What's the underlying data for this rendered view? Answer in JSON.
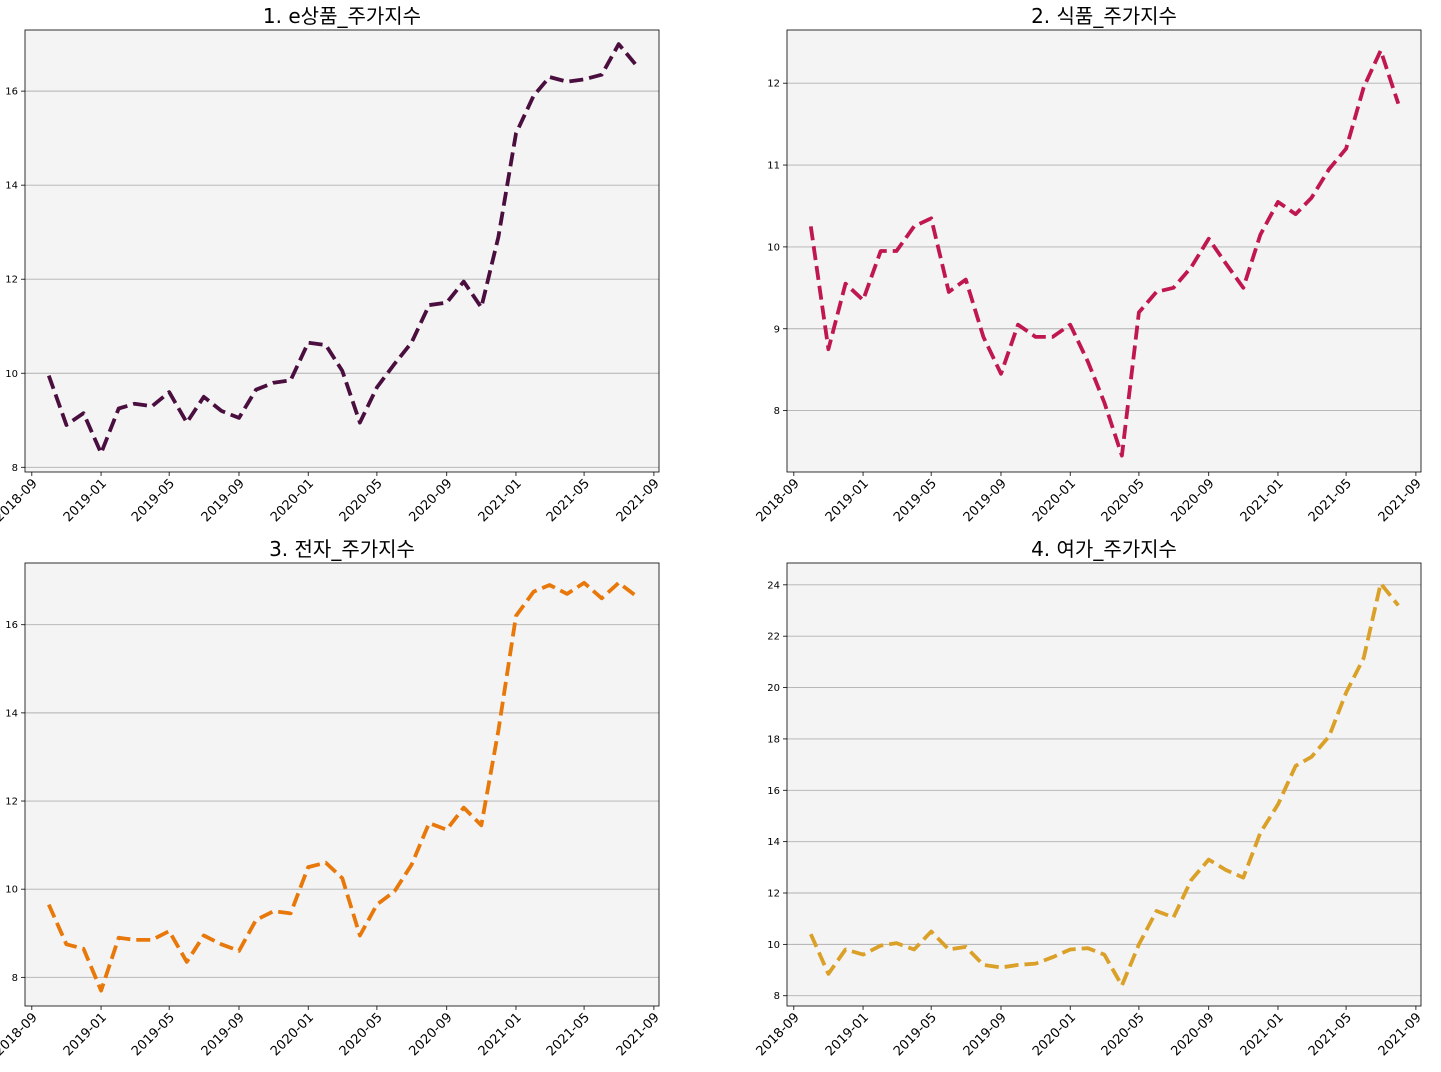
{
  "chart_data": [
    {
      "type": "line",
      "title": "1. e상품_주가지수",
      "color": "#4a0f3f",
      "line_style": "dashed",
      "grid": "y",
      "ylim": [
        7.9,
        17.3
      ],
      "yticks": [
        8,
        10,
        12,
        14,
        16
      ],
      "xlim": [
        "2018-08-20",
        "2021-09-10"
      ],
      "xticks": [
        "2018-09",
        "2019-01",
        "2019-05",
        "2019-09",
        "2020-01",
        "2020-05",
        "2020-09",
        "2021-01",
        "2021-05",
        "2021-09"
      ],
      "x": [
        "2018-10",
        "2018-11",
        "2018-12",
        "2019-01",
        "2019-02",
        "2019-03",
        "2019-04",
        "2019-05",
        "2019-06",
        "2019-07",
        "2019-08",
        "2019-09",
        "2019-10",
        "2019-11",
        "2019-12",
        "2020-01",
        "2020-02",
        "2020-03",
        "2020-04",
        "2020-05",
        "2020-06",
        "2020-07",
        "2020-08",
        "2020-09",
        "2020-10",
        "2020-11",
        "2020-12",
        "2021-01",
        "2021-02",
        "2021-03",
        "2021-04",
        "2021-05",
        "2021-06",
        "2021-07",
        "2021-08"
      ],
      "values": [
        9.95,
        8.9,
        9.15,
        8.3,
        9.25,
        9.35,
        9.3,
        9.6,
        8.95,
        9.5,
        9.2,
        9.05,
        9.65,
        9.8,
        9.85,
        10.65,
        10.6,
        10.05,
        8.95,
        9.7,
        10.2,
        10.65,
        11.45,
        11.5,
        11.95,
        11.4,
        12.9,
        15.1,
        15.9,
        16.3,
        16.2,
        16.25,
        16.35,
        17.0,
        16.55
      ]
    },
    {
      "type": "line",
      "title": "2. 식품_주가지수",
      "color": "#c0174f",
      "line_style": "dashed",
      "grid": "y",
      "ylim": [
        7.25,
        12.65
      ],
      "yticks": [
        8,
        9,
        10,
        11,
        12
      ],
      "xlim": [
        "2018-08-20",
        "2021-09-10"
      ],
      "xticks": [
        "2018-09",
        "2019-01",
        "2019-05",
        "2019-09",
        "2020-01",
        "2020-05",
        "2020-09",
        "2021-01",
        "2021-05",
        "2021-09"
      ],
      "x": [
        "2018-10",
        "2018-11",
        "2018-12",
        "2019-01",
        "2019-02",
        "2019-03",
        "2019-04",
        "2019-05",
        "2019-06",
        "2019-07",
        "2019-08",
        "2019-09",
        "2019-10",
        "2019-11",
        "2019-12",
        "2020-01",
        "2020-02",
        "2020-03",
        "2020-04",
        "2020-05",
        "2020-06",
        "2020-07",
        "2020-08",
        "2020-09",
        "2020-10",
        "2020-11",
        "2020-12",
        "2021-01",
        "2021-02",
        "2021-03",
        "2021-04",
        "2021-05",
        "2021-06",
        "2021-07",
        "2021-08"
      ],
      "values": [
        10.25,
        8.75,
        9.55,
        9.35,
        9.95,
        9.95,
        10.25,
        10.35,
        9.45,
        9.6,
        8.9,
        8.45,
        9.05,
        8.9,
        8.9,
        9.05,
        8.6,
        8.1,
        7.45,
        9.2,
        9.45,
        9.5,
        9.75,
        10.1,
        9.8,
        9.5,
        10.15,
        10.55,
        10.4,
        10.6,
        10.95,
        11.2,
        11.95,
        12.4,
        11.75
      ]
    },
    {
      "type": "line",
      "title": "3. 전자_주가지수",
      "color": "#e8780a",
      "line_style": "dashed",
      "grid": "y",
      "ylim": [
        7.35,
        17.4
      ],
      "yticks": [
        8,
        10,
        12,
        14,
        16
      ],
      "xlim": [
        "2018-08-20",
        "2021-09-10"
      ],
      "xticks": [
        "2018-09",
        "2019-01",
        "2019-05",
        "2019-09",
        "2020-01",
        "2020-05",
        "2020-09",
        "2021-01",
        "2021-05",
        "2021-09"
      ],
      "x": [
        "2018-10",
        "2018-11",
        "2018-12",
        "2019-01",
        "2019-02",
        "2019-03",
        "2019-04",
        "2019-05",
        "2019-06",
        "2019-07",
        "2019-08",
        "2019-09",
        "2019-10",
        "2019-11",
        "2019-12",
        "2020-01",
        "2020-02",
        "2020-03",
        "2020-04",
        "2020-05",
        "2020-06",
        "2020-07",
        "2020-08",
        "2020-09",
        "2020-10",
        "2020-11",
        "2020-12",
        "2021-01",
        "2021-02",
        "2021-03",
        "2021-04",
        "2021-05",
        "2021-06",
        "2021-07",
        "2021-08"
      ],
      "values": [
        9.65,
        8.75,
        8.65,
        7.7,
        8.9,
        8.85,
        8.85,
        9.05,
        8.35,
        8.95,
        8.75,
        8.6,
        9.3,
        9.5,
        9.45,
        10.5,
        10.6,
        10.25,
        8.95,
        9.65,
        9.95,
        10.55,
        11.5,
        11.35,
        11.85,
        11.45,
        13.6,
        16.2,
        16.75,
        16.9,
        16.7,
        16.95,
        16.6,
        16.95,
        16.65
      ]
    },
    {
      "type": "line",
      "title": "4. 여가_주가지수",
      "color": "#dba027",
      "line_style": "dashed",
      "grid": "y",
      "ylim": [
        7.6,
        24.85
      ],
      "yticks": [
        8,
        10,
        12,
        14,
        16,
        18,
        20,
        22,
        24
      ],
      "xlim": [
        "2018-08-20",
        "2021-09-10"
      ],
      "xticks": [
        "2018-09",
        "2019-01",
        "2019-05",
        "2019-09",
        "2020-01",
        "2020-05",
        "2020-09",
        "2021-01",
        "2021-05",
        "2021-09"
      ],
      "x": [
        "2018-10",
        "2018-11",
        "2018-12",
        "2019-01",
        "2019-02",
        "2019-03",
        "2019-04",
        "2019-05",
        "2019-06",
        "2019-07",
        "2019-08",
        "2019-09",
        "2019-10",
        "2019-11",
        "2019-12",
        "2020-01",
        "2020-02",
        "2020-03",
        "2020-04",
        "2020-05",
        "2020-06",
        "2020-07",
        "2020-08",
        "2020-09",
        "2020-10",
        "2020-11",
        "2020-12",
        "2021-01",
        "2021-02",
        "2021-03",
        "2021-04",
        "2021-05",
        "2021-06",
        "2021-07",
        "2021-08"
      ],
      "values": [
        10.4,
        8.85,
        9.8,
        9.6,
        9.95,
        10.05,
        9.8,
        10.5,
        9.8,
        9.9,
        9.2,
        9.1,
        9.2,
        9.25,
        9.5,
        9.8,
        9.85,
        9.6,
        8.4,
        10.0,
        11.3,
        11.05,
        12.5,
        13.3,
        12.9,
        12.6,
        14.35,
        15.45,
        16.95,
        17.3,
        18.1,
        19.8,
        21.15,
        24.05,
        23.2
      ]
    }
  ]
}
